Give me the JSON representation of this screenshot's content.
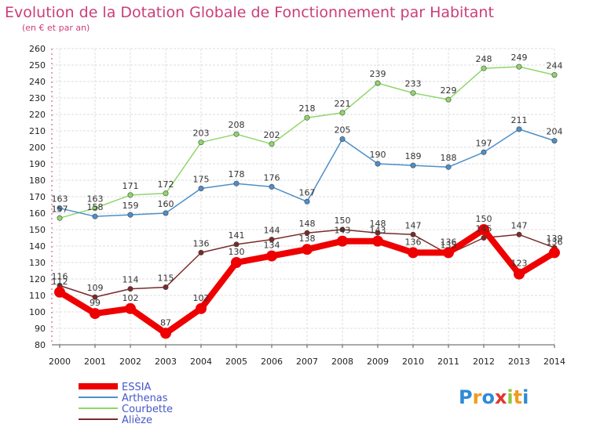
{
  "chart_data": {
    "type": "line",
    "title": "Evolution de la Dotation Globale de Fonctionnement par Habitant",
    "subtitle": "(en € et par an)",
    "xlabel": "",
    "ylabel": "",
    "ylim": [
      80,
      260
    ],
    "yticks": [
      80,
      90,
      100,
      110,
      120,
      130,
      140,
      150,
      160,
      170,
      180,
      190,
      200,
      210,
      220,
      230,
      240,
      250,
      260
    ],
    "grid": true,
    "legend": "bottom-left",
    "x": [
      "2000",
      "2001",
      "2002",
      "2003",
      "2004",
      "2005",
      "2006",
      "2007",
      "2008",
      "2009",
      "2010",
      "2011",
      "2012",
      "2013",
      "2014"
    ],
    "series": [
      {
        "name": "Courbette",
        "color": "#8fd66a",
        "values": [
          157,
          163,
          171,
          172,
          203,
          208,
          202,
          218,
          221,
          239,
          233,
          229,
          248,
          249,
          244
        ]
      },
      {
        "name": "Arthenas",
        "color": "#4d8fc9",
        "values": [
          163,
          158,
          159,
          160,
          175,
          178,
          176,
          167,
          205,
          190,
          189,
          188,
          197,
          211,
          204
        ]
      },
      {
        "name": "Alièze",
        "color": "#7a2a2a",
        "values": [
          116,
          109,
          114,
          115,
          136,
          141,
          144,
          148,
          150,
          148,
          147,
          135,
          145,
          147,
          139
        ]
      },
      {
        "name": "ESSIA",
        "color": "#ee0000",
        "values": [
          112,
          99,
          102,
          87,
          102,
          130,
          134,
          138,
          143,
          143,
          136,
          136,
          150,
          123,
          136
        ]
      }
    ],
    "legend_items": [
      "ESSIA",
      "Arthenas",
      "Courbette",
      "Alièze"
    ]
  },
  "logo": {
    "text": "Proxiti"
  }
}
